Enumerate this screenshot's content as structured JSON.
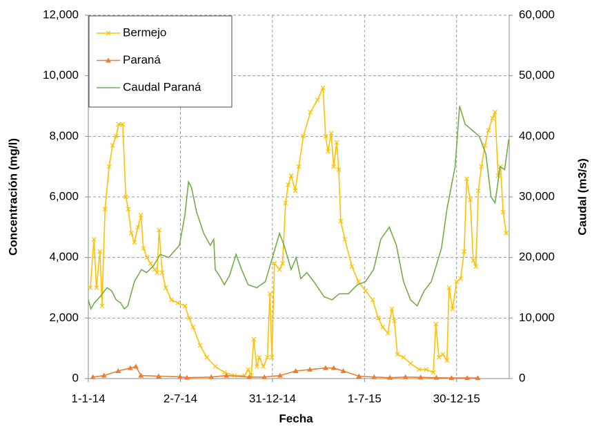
{
  "chart_data": {
    "type": "line",
    "x_label": "Fecha",
    "y_label": "Concentración (mg/l)",
    "y2_label": "Caudal (m3/s)",
    "xlim": [
      "2014-01-01",
      "2016-04-12"
    ],
    "xticks": [
      {
        "value": "2014-01-01",
        "label": "1-1-14"
      },
      {
        "value": "2014-07-02",
        "label": "2-7-14"
      },
      {
        "value": "2014-12-31",
        "label": "31-12-14"
      },
      {
        "value": "2015-07-01",
        "label": "1-7-15"
      },
      {
        "value": "2015-12-30",
        "label": "30-12-15"
      }
    ],
    "ylim": [
      0,
      12000
    ],
    "yticks": [
      0,
      {
        "value": 2000,
        "label": "2,000"
      },
      {
        "value": 4000,
        "label": "4,000"
      },
      {
        "value": 6000,
        "label": "6,000"
      },
      {
        "value": 8000,
        "label": "8,000"
      },
      {
        "value": 10000,
        "label": "10,000"
      },
      {
        "value": 12000,
        "label": "12,000"
      }
    ],
    "y2lim": [
      0,
      60000
    ],
    "y2ticks": [
      0,
      {
        "value": 10000,
        "label": "10,000"
      },
      {
        "value": 20000,
        "label": "20,000"
      },
      {
        "value": 30000,
        "label": "30,000"
      },
      {
        "value": 40000,
        "label": "40,000"
      },
      {
        "value": 50000,
        "label": "50,000"
      },
      {
        "value": 60000,
        "label": "60,000"
      }
    ],
    "grid": true,
    "legend": "upper left",
    "series": [
      {
        "name": "Bermejo",
        "color": "#FFC000",
        "marker": "x",
        "axis": "y",
        "x": [
          "2014-01-05",
          "2014-01-12",
          "2014-01-17",
          "2014-01-24",
          "2014-01-28",
          "2014-02-03",
          "2014-02-11",
          "2014-02-18",
          "2014-02-25",
          "2014-03-02",
          "2014-03-10",
          "2014-03-16",
          "2014-03-21",
          "2014-03-27",
          "2014-04-02",
          "2014-04-09",
          "2014-04-15",
          "2014-04-20",
          "2014-04-27",
          "2014-05-04",
          "2014-05-12",
          "2014-05-17",
          "2014-05-21",
          "2014-05-27",
          "2014-06-03",
          "2014-06-14",
          "2014-06-27",
          "2014-07-11",
          "2014-07-19",
          "2014-07-27",
          "2014-08-10",
          "2014-08-23",
          "2014-09-09",
          "2014-09-27",
          "2014-10-17",
          "2014-11-06",
          "2014-11-13",
          "2014-11-19",
          "2014-11-24",
          "2014-11-30",
          "2014-12-05",
          "2014-12-13",
          "2014-12-21",
          "2014-12-26",
          "2014-12-30",
          "2015-01-04",
          "2015-01-14",
          "2015-01-20",
          "2015-01-26",
          "2015-01-31",
          "2015-02-06",
          "2015-02-14",
          "2015-02-21",
          "2015-03-02",
          "2015-03-16",
          "2015-03-30",
          "2015-04-10",
          "2015-04-15",
          "2015-04-20",
          "2015-04-26",
          "2015-05-01",
          "2015-05-07",
          "2015-05-11",
          "2015-05-15",
          "2015-05-23",
          "2015-06-06",
          "2015-06-19",
          "2015-07-03",
          "2015-07-17",
          "2015-07-28",
          "2015-08-06",
          "2015-08-16",
          "2015-08-24",
          "2015-08-29",
          "2015-09-04",
          "2015-09-16",
          "2015-09-30",
          "2015-10-17",
          "2015-10-31",
          "2015-11-14",
          "2015-11-19",
          "2015-11-25",
          "2015-12-03",
          "2015-12-11",
          "2015-12-15",
          "2015-12-22",
          "2015-12-30",
          "2016-01-07",
          "2016-01-14",
          "2016-01-19",
          "2016-01-26",
          "2016-02-01",
          "2016-02-06",
          "2016-02-11",
          "2016-02-17",
          "2016-02-24",
          "2016-03-02",
          "2016-03-10",
          "2016-03-15",
          "2016-03-21",
          "2016-03-26",
          "2016-03-31",
          "2016-04-06"
        ],
        "values": [
          3000,
          4600,
          3000,
          4200,
          2400,
          5600,
          7000,
          7700,
          8000,
          8400,
          8400,
          6000,
          5600,
          4800,
          4500,
          5000,
          5400,
          4300,
          4000,
          3800,
          3600,
          3500,
          4900,
          3500,
          3000,
          2600,
          2500,
          2400,
          2000,
          1700,
          1100,
          700,
          400,
          200,
          100,
          100,
          300,
          100,
          1300,
          400,
          700,
          400,
          700,
          2800,
          700,
          3800,
          3600,
          3800,
          5800,
          6400,
          6700,
          6200,
          7000,
          8000,
          8800,
          9200,
          9600,
          8000,
          7500,
          8100,
          7000,
          7800,
          6900,
          5200,
          4600,
          3700,
          3200,
          2900,
          2600,
          2000,
          1700,
          1500,
          2300,
          1900,
          800,
          700,
          500,
          300,
          300,
          200,
          1800,
          700,
          800,
          600,
          3000,
          2300,
          3200,
          3300,
          4200,
          6600,
          5900,
          3900,
          3700,
          6200,
          7000,
          7700,
          8200,
          8600,
          8800,
          6700,
          7000,
          5500,
          4800
        ]
      },
      {
        "name": "Paraná",
        "color": "#ED7D31",
        "marker": "triangle",
        "axis": "y",
        "x": [
          "2014-01-10",
          "2014-02-01",
          "2014-03-01",
          "2014-03-25",
          "2014-04-05",
          "2014-04-15",
          "2014-05-20",
          "2014-07-01",
          "2014-07-15",
          "2014-09-01",
          "2014-10-01",
          "2014-11-15",
          "2014-12-15",
          "2015-01-15",
          "2015-02-15",
          "2015-03-15",
          "2015-04-15",
          "2015-05-01",
          "2015-05-20",
          "2015-06-20",
          "2015-07-20",
          "2015-08-20",
          "2015-09-20",
          "2015-10-20",
          "2015-11-20",
          "2015-12-20",
          "2016-01-20",
          "2016-02-10"
        ],
        "values": [
          50,
          100,
          250,
          350,
          400,
          100,
          80,
          60,
          30,
          50,
          100,
          50,
          50,
          100,
          250,
          300,
          350,
          350,
          250,
          80,
          50,
          30,
          50,
          40,
          30,
          20,
          20,
          20
        ]
      },
      {
        "name": "Caudal Paraná",
        "color": "#70AD47",
        "marker": "none",
        "axis": "y2",
        "x": [
          "2014-01-01",
          "2014-01-06",
          "2014-01-13",
          "2014-01-24",
          "2014-02-07",
          "2014-02-16",
          "2014-02-25",
          "2014-03-06",
          "2014-03-13",
          "2014-03-20",
          "2014-04-02",
          "2014-04-16",
          "2014-04-26",
          "2014-05-09",
          "2014-05-23",
          "2014-06-09",
          "2014-06-30",
          "2014-07-11",
          "2014-07-18",
          "2014-07-24",
          "2014-08-03",
          "2014-08-17",
          "2014-08-30",
          "2014-09-06",
          "2014-09-09",
          "2014-09-17",
          "2014-09-27",
          "2014-10-07",
          "2014-10-20",
          "2014-10-31",
          "2014-11-13",
          "2014-11-30",
          "2014-12-17",
          "2014-12-31",
          "2015-01-14",
          "2015-01-23",
          "2015-02-06",
          "2015-02-16",
          "2015-02-25",
          "2015-03-09",
          "2015-03-23",
          "2015-04-12",
          "2015-04-28",
          "2015-05-12",
          "2015-05-30",
          "2015-06-17",
          "2015-07-03",
          "2015-07-19",
          "2015-08-02",
          "2015-08-19",
          "2015-09-02",
          "2015-09-16",
          "2015-09-30",
          "2015-10-13",
          "2015-10-27",
          "2015-11-10",
          "2015-11-30",
          "2015-12-11",
          "2015-12-27",
          "2016-01-05",
          "2016-01-16",
          "2016-01-30",
          "2016-02-13",
          "2016-02-26",
          "2016-03-07",
          "2016-03-15",
          "2016-03-25",
          "2016-04-03",
          "2016-04-11"
        ],
        "values": [
          13000,
          11500,
          12500,
          13500,
          15000,
          14500,
          13000,
          12500,
          11500,
          12000,
          16000,
          18000,
          17500,
          18500,
          20500,
          20000,
          22000,
          27000,
          32500,
          31500,
          27500,
          24000,
          22000,
          23000,
          18000,
          17000,
          15500,
          17000,
          20500,
          18000,
          15500,
          15000,
          16000,
          20000,
          24000,
          22000,
          18000,
          20000,
          16500,
          17500,
          16000,
          13500,
          13000,
          14000,
          14000,
          15500,
          16000,
          18000,
          23000,
          25000,
          22000,
          16000,
          13000,
          12000,
          14500,
          16000,
          21500,
          28000,
          35000,
          45000,
          42000,
          41000,
          40000,
          37000,
          30000,
          29000,
          35000,
          34500,
          39500
        ]
      }
    ]
  }
}
